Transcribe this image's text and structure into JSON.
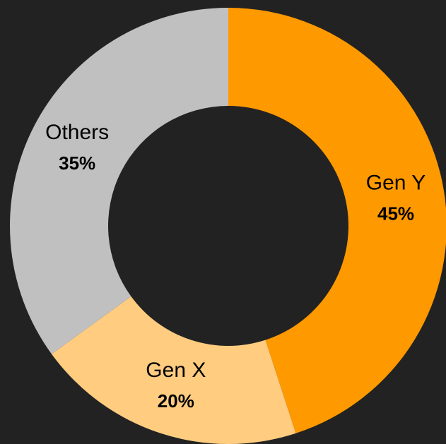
{
  "chart_data": {
    "type": "donut",
    "categories": [
      "Gen Y",
      "Gen X",
      "Others"
    ],
    "values": [
      45,
      20,
      35
    ],
    "value_labels": [
      "45%",
      "20%",
      "35%"
    ],
    "colors": [
      "#ff9900",
      "#ffcc80",
      "#c0c0c0"
    ]
  }
}
